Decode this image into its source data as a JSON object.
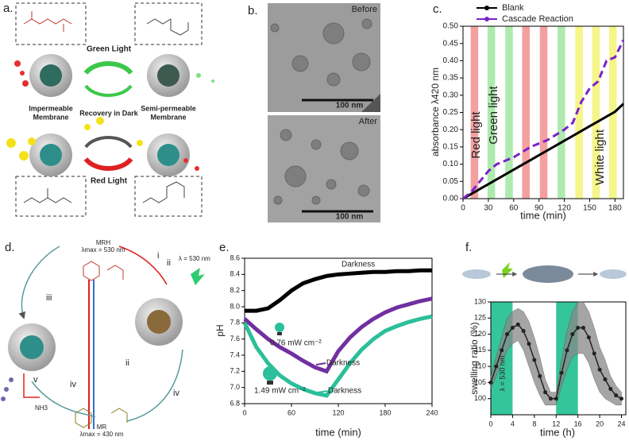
{
  "figure_a": {
    "label": "a.",
    "green_light": "Green Light",
    "red_light": "Red Light",
    "recovery": "Recovery in Dark",
    "left_membrane": [
      "Impermeable",
      "Membrane"
    ],
    "right_membrane": [
      "Semi-permeable",
      "Membrane"
    ]
  },
  "figure_b": {
    "label": "b.",
    "before": "Before",
    "after": "After",
    "scale_bars": [
      "100 nm",
      "100 nm"
    ]
  },
  "figure_d": {
    "label": "d.",
    "mrh": "MRH",
    "mrh_lambda": "λmax = 530 nm",
    "light": "λ = 530 nm",
    "mr": "MR",
    "mr_lambda": "λmax = 430 nm",
    "steps": [
      "i",
      "ii",
      "ii",
      "iii",
      "iv",
      "iv",
      "v"
    ],
    "ammonia": "NH3"
  },
  "chart_data": [
    {
      "type": "line",
      "panel": "c.",
      "x_label": "time (min)",
      "y_label": "absorbance λ420 nm",
      "legend": "top-left",
      "x": [
        0,
        10,
        20,
        30,
        40,
        50,
        60,
        70,
        80,
        90,
        100,
        110,
        120,
        130,
        140,
        150,
        160,
        170,
        180,
        190
      ],
      "series": [
        {
          "name": "Blank",
          "color": "#000000",
          "values": [
            0,
            0.014,
            0.028,
            0.042,
            0.056,
            0.07,
            0.084,
            0.098,
            0.112,
            0.126,
            0.14,
            0.154,
            0.168,
            0.182,
            0.196,
            0.21,
            0.224,
            0.238,
            0.252,
            0.275
          ]
        },
        {
          "name": "Cascade Reaction",
          "color": "#7b22c9",
          "dashed": true,
          "values": [
            0,
            0.02,
            0.05,
            0.08,
            0.1,
            0.11,
            0.12,
            0.135,
            0.15,
            0.16,
            0.17,
            0.185,
            0.2,
            0.22,
            0.28,
            0.32,
            0.34,
            0.4,
            0.41,
            0.46
          ]
        }
      ],
      "bands": [
        {
          "start": 9,
          "end": 18,
          "color": "#f4a0a0"
        },
        {
          "start": 29,
          "end": 38,
          "color": "#aeeaae"
        },
        {
          "start": 50,
          "end": 59,
          "color": "#aeeaae"
        },
        {
          "start": 70,
          "end": 79,
          "color": "#f4a0a0"
        },
        {
          "start": 91,
          "end": 100,
          "color": "#f4a0a0"
        },
        {
          "start": 112,
          "end": 121,
          "color": "#aeeaae"
        },
        {
          "start": 133,
          "end": 142,
          "color": "#f5f58a"
        },
        {
          "start": 153,
          "end": 162,
          "color": "#f5f58a"
        },
        {
          "start": 173,
          "end": 182,
          "color": "#f5f58a"
        }
      ],
      "annotations": [
        {
          "text": "Red light"
        },
        {
          "text": "Green light"
        },
        {
          "text": "White light"
        }
      ],
      "xlim": [
        0,
        190
      ],
      "xticks": [
        0,
        30,
        60,
        90,
        120,
        150,
        180
      ],
      "ylim": [
        0,
        0.5
      ],
      "yticks": [
        {
          "value": 0,
          "label": "0.00"
        },
        {
          "value": 0.05,
          "label": "0.05"
        },
        {
          "value": 0.1,
          "label": "0.10"
        },
        {
          "value": 0.15,
          "label": "0.15"
        },
        {
          "value": 0.2,
          "label": "0.20"
        },
        {
          "value": 0.25,
          "label": "0.25"
        },
        {
          "value": 0.3,
          "label": "0.30"
        },
        {
          "value": 0.35,
          "label": "0.35"
        },
        {
          "value": 0.4,
          "label": "0.40"
        },
        {
          "value": 0.45,
          "label": "0.45"
        },
        {
          "value": 0.5,
          "label": "0.50"
        }
      ]
    },
    {
      "type": "line",
      "panel": "e.",
      "x_label": "time (min)",
      "y_label": "pH",
      "x": [
        0,
        15,
        30,
        45,
        60,
        75,
        90,
        105,
        120,
        135,
        150,
        165,
        180,
        195,
        210,
        225,
        240
      ],
      "series": [
        {
          "name": "Darkness",
          "color": "#000000",
          "values": [
            7.95,
            7.95,
            7.98,
            8.08,
            8.2,
            8.29,
            8.34,
            8.38,
            8.4,
            8.41,
            8.42,
            8.43,
            8.43,
            8.44,
            8.44,
            8.45,
            8.45
          ]
        },
        {
          "name": "0.76 mW cm⁻²",
          "color": "#7030a0",
          "values": [
            7.85,
            7.72,
            7.6,
            7.5,
            7.42,
            7.33,
            7.25,
            7.2,
            7.45,
            7.62,
            7.75,
            7.85,
            7.93,
            7.99,
            8.03,
            8.07,
            8.1
          ]
        },
        {
          "name": "1.49 mW cm⁻²",
          "color": "#2bbf9a",
          "values": [
            7.8,
            7.5,
            7.3,
            7.15,
            7.05,
            6.98,
            6.93,
            6.9,
            7.1,
            7.3,
            7.47,
            7.6,
            7.7,
            7.76,
            7.81,
            7.85,
            7.88
          ]
        }
      ],
      "annotations": [
        {
          "text": "Darkness",
          "color": "#7030a0"
        },
        {
          "text": "Darkness",
          "color": "#2bbf9a"
        }
      ],
      "xlim": [
        0,
        240
      ],
      "xticks": [
        0,
        60,
        120,
        180,
        240
      ],
      "ylim": [
        6.8,
        8.6
      ],
      "yticks": [
        6.8,
        {
          "value": 7,
          "label": "7.0"
        },
        7.2,
        7.4,
        7.6,
        7.8,
        {
          "value": 8,
          "label": "8.0"
        },
        8.2,
        8.4,
        8.6
      ]
    },
    {
      "type": "line",
      "panel": "f.",
      "x_label": "time (h)",
      "y_label": "swelling ratio (%)",
      "x": [
        0,
        1,
        2,
        3,
        4,
        5,
        6,
        7,
        8,
        9,
        10,
        11,
        12,
        13,
        14,
        15,
        16,
        17,
        18,
        19,
        20,
        21,
        22,
        23,
        24
      ],
      "series": [
        {
          "name": null,
          "color": "#222222",
          "marker": true,
          "values": [
            105,
            110,
            115,
            120,
            122,
            123,
            121,
            117,
            112,
            107,
            102,
            100,
            100,
            108,
            115,
            120,
            122,
            122,
            119,
            114,
            109,
            106,
            103,
            101,
            100
          ],
          "errors": [
            2,
            3,
            4,
            5,
            5,
            5,
            6,
            7,
            7,
            6,
            4,
            2,
            2,
            4,
            6,
            7,
            8,
            8,
            8,
            8,
            7,
            6,
            4,
            3,
            2
          ]
        }
      ],
      "bands": [
        {
          "start": 0,
          "end": 4,
          "color": "#1fbf8f"
        },
        {
          "start": 12,
          "end": 16,
          "color": "#1fbf8f"
        }
      ],
      "annotations": [
        {
          "text": "λ = 530 nm"
        }
      ],
      "xlim": [
        0,
        24.8
      ],
      "xticks": [
        0,
        4,
        8,
        12,
        16,
        20,
        24
      ],
      "ylim": [
        95,
        130
      ],
      "yticks": [
        100,
        105,
        110,
        115,
        120,
        125,
        130
      ]
    }
  ]
}
